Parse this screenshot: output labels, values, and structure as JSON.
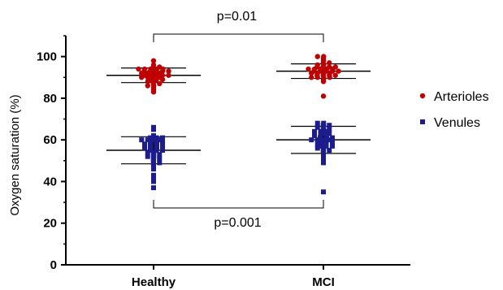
{
  "chart_data": {
    "type": "scatter",
    "title": "",
    "xlabel": "",
    "ylabel": "Oxygen saturation (%)",
    "ylim": [
      0,
      110
    ],
    "yticks": [
      0,
      20,
      40,
      60,
      80,
      100
    ],
    "categories": [
      "Healthy",
      "MCI"
    ],
    "grid": false,
    "legend_position": "right",
    "series": [
      {
        "name": "Arterioles",
        "marker": "circle",
        "color": "#c00000",
        "values": {
          "Healthy": [
            98,
            96,
            95,
            95,
            94,
            94,
            94,
            94,
            94,
            93,
            93,
            93,
            93,
            93,
            92,
            92,
            92,
            92,
            91,
            91,
            91,
            91,
            91,
            90,
            90,
            90,
            90,
            89,
            89,
            89,
            88,
            88,
            87,
            87,
            86,
            86,
            85,
            84,
            83
          ],
          "MCI": [
            100,
            100,
            99,
            98,
            97,
            97,
            96,
            96,
            95,
            95,
            95,
            95,
            94,
            94,
            94,
            94,
            94,
            93,
            93,
            93,
            93,
            93,
            92,
            92,
            92,
            92,
            91,
            91,
            91,
            91,
            90,
            90,
            90,
            90,
            89,
            88,
            81
          ]
        },
        "mean": {
          "Healthy": 91,
          "MCI": 93
        },
        "sd": {
          "Healthy": 3.5,
          "MCI": 3.5
        }
      },
      {
        "name": "Venules",
        "marker": "square",
        "color": "#1c1c8c",
        "values": {
          "Healthy": [
            66,
            65,
            62,
            61,
            61,
            61,
            60,
            60,
            60,
            60,
            59,
            59,
            59,
            58,
            58,
            58,
            57,
            57,
            57,
            56,
            56,
            56,
            55,
            55,
            55,
            54,
            54,
            53,
            53,
            52,
            52,
            51,
            51,
            50,
            49,
            49,
            48,
            47,
            46,
            43,
            42,
            40,
            37
          ],
          "MCI": [
            68,
            68,
            67,
            67,
            66,
            66,
            65,
            65,
            64,
            64,
            64,
            63,
            63,
            62,
            62,
            62,
            61,
            61,
            61,
            60,
            60,
            60,
            60,
            59,
            59,
            59,
            58,
            58,
            57,
            57,
            57,
            56,
            56,
            55,
            55,
            54,
            53,
            52,
            51,
            50,
            49,
            35
          ]
        },
        "mean": {
          "Healthy": 55,
          "MCI": 60
        },
        "sd": {
          "Healthy": 6.5,
          "MCI": 6.5
        }
      }
    ],
    "annotations": [
      {
        "text": "p=0.01",
        "group": "Arterioles",
        "placement": "top"
      },
      {
        "text": "p=0.001",
        "group": "Venules",
        "placement": "bottom"
      }
    ]
  }
}
